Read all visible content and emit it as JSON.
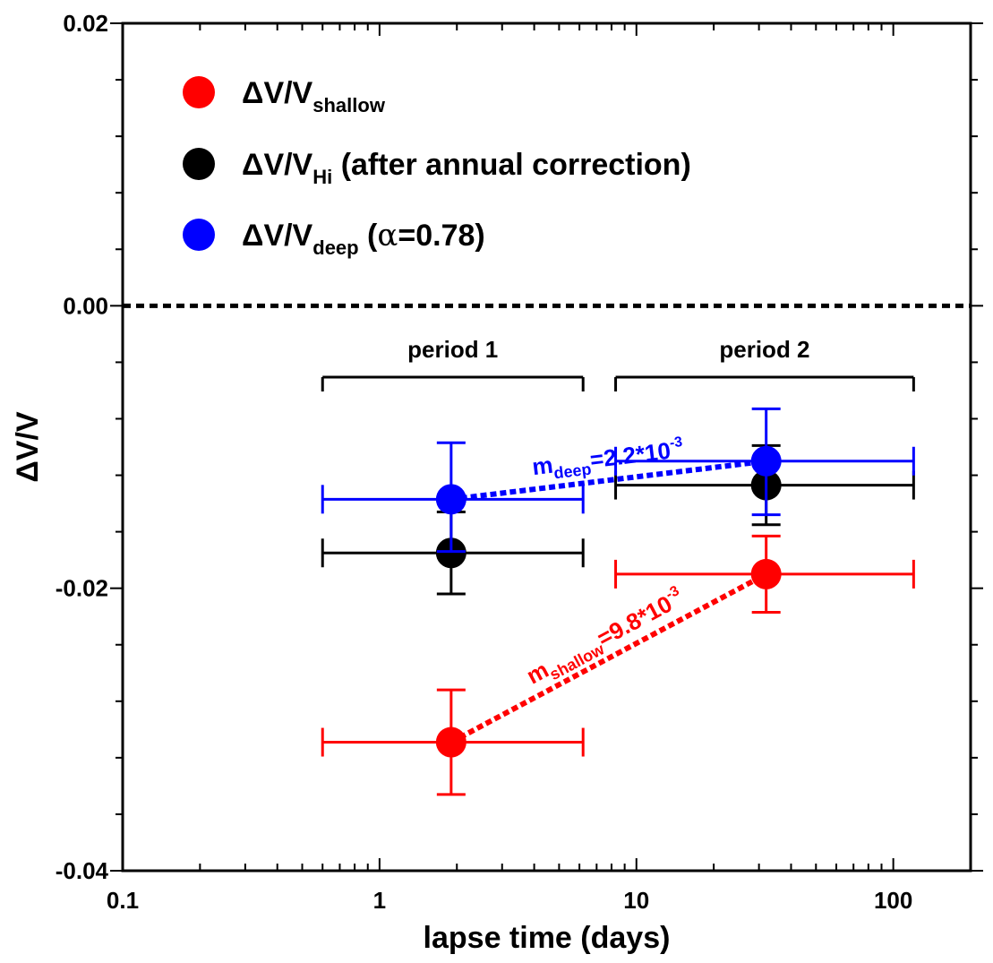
{
  "chart_data": {
    "type": "scatter",
    "xscale": "log",
    "xlim": [
      0.1,
      200
    ],
    "ylim": [
      -0.04,
      0.02
    ],
    "xlabel": "lapse time (days)",
    "ylabel": "ΔV/V",
    "x_ticks": [
      {
        "value": 0.1,
        "label": "0.1"
      },
      {
        "value": 1,
        "label": "1"
      },
      {
        "value": 10,
        "label": "10"
      },
      {
        "value": 100,
        "label": "100"
      }
    ],
    "y_ticks": [
      {
        "value": 0.02,
        "label": "0.02"
      },
      {
        "value": 0.0,
        "label": "0.00"
      },
      {
        "value": -0.02,
        "label": "-0.02"
      },
      {
        "value": -0.04,
        "label": "-0.04"
      }
    ],
    "zero_line": 0.0,
    "legend": {
      "placement": "top-left",
      "entries": [
        {
          "series": "shallow",
          "base": "ΔV/V",
          "sub": "shallow",
          "suffix": ""
        },
        {
          "series": "hi",
          "base": "ΔV/V",
          "sub": "Hi",
          "suffix": " (after annual correction)"
        },
        {
          "series": "deep",
          "base": "ΔV/V",
          "sub": "deep",
          "suffix_pre": " (",
          "suffix_greek": "α",
          "suffix_post": "=0.78)"
        }
      ]
    },
    "periods": [
      {
        "label": "period 1",
        "x_start": 0.6,
        "x_end": 6.2
      },
      {
        "label": "period 2",
        "x_start": 8.3,
        "x_end": 120
      }
    ],
    "series": [
      {
        "id": "shallow",
        "name": "ΔV/V shallow",
        "color": "#ff0000",
        "points": [
          {
            "x": 1.9,
            "y": -0.0309,
            "xlo": 0.6,
            "xhi": 6.2,
            "ylo": -0.0346,
            "yhi": -0.0272
          },
          {
            "x": 32,
            "y": -0.019,
            "xlo": 8.3,
            "xhi": 120,
            "ylo": -0.0217,
            "yhi": -0.0163
          }
        ]
      },
      {
        "id": "hi",
        "name": "ΔV/V Hi (after annual correction)",
        "color": "#000000",
        "points": [
          {
            "x": 1.9,
            "y": -0.0175,
            "xlo": 0.6,
            "xhi": 6.2,
            "ylo": -0.0204,
            "yhi": -0.0146
          },
          {
            "x": 32,
            "y": -0.0127,
            "xlo": 8.3,
            "xhi": 120,
            "ylo": -0.0155,
            "yhi": -0.0099
          }
        ]
      },
      {
        "id": "deep",
        "name": "ΔV/V deep (α=0.78)",
        "color": "#0000ff",
        "points": [
          {
            "x": 1.9,
            "y": -0.0137,
            "xlo": 0.6,
            "xhi": 6.2,
            "ylo": -0.0174,
            "yhi": -0.0097
          },
          {
            "x": 32,
            "y": -0.011,
            "xlo": 8.3,
            "xhi": 120,
            "ylo": -0.0148,
            "yhi": -0.0073
          }
        ]
      }
    ],
    "slopes": [
      {
        "series": "deep",
        "color": "#0000ff",
        "base": "m",
        "sub": "deep",
        "value": "=2.2*10",
        "exp": "-3"
      },
      {
        "series": "shallow",
        "color": "#ff0000",
        "base": "m",
        "sub": "shallow",
        "value": "=9.8*10",
        "exp": "-3"
      }
    ]
  }
}
